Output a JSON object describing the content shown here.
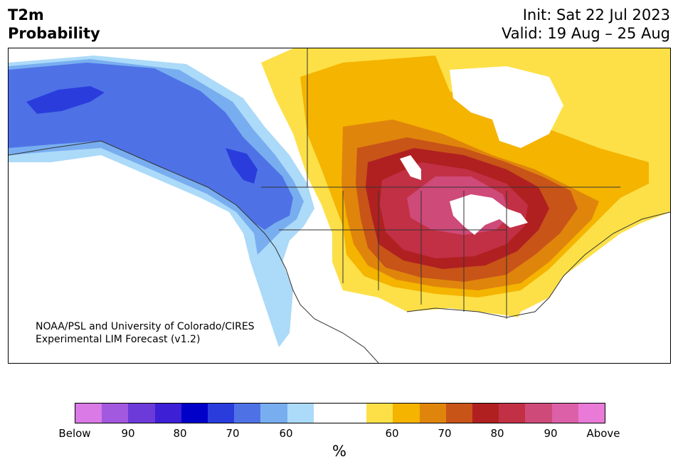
{
  "header": {
    "variable": "T2m",
    "product": "Probability",
    "init": "Init: Sat 22 Jul 2023",
    "valid": "Valid: 19 Aug – 25 Aug"
  },
  "credit": {
    "line1": "NOAA/PSL and University of Colorado/CIRES",
    "line2": "Experimental LIM Forecast (v1.2)"
  },
  "colorbar": {
    "unit": "%",
    "colors": [
      "#d97ae6",
      "#a358e0",
      "#6c3ad8",
      "#3d1fd6",
      "#0000c8",
      "#2a3ddc",
      "#4e72e6",
      "#78aef0",
      "#acdaf9",
      "#ffffff",
      "#ffffff",
      "#fde047",
      "#f4b400",
      "#e0850c",
      "#c85418",
      "#b02020",
      "#c23045",
      "#ce4a78",
      "#db60a8",
      "#e97ad8"
    ],
    "ticks": [
      "Below",
      "90",
      "80",
      "70",
      "60",
      "60",
      "70",
      "80",
      "90",
      "Above"
    ]
  },
  "legend_meaning": {
    "cold_side": "Below normal probability (blue/purple)",
    "warm_side": "Above normal probability (yellow/red/pink)"
  }
}
